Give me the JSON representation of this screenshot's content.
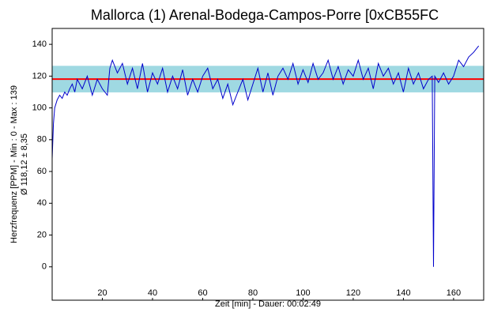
{
  "chart_data": {
    "type": "line",
    "title": "Mallorca (1) Arenal-Bodega-Campos-Porre [0xCB55FC",
    "x_label": "Zeit [min] - Dauer: 00:02:49",
    "y_label": "Herzfrequenz [PPM] - Min : 0 - Max : 139",
    "y_label_2": "Ø 118,12 ± 8,35",
    "mean": 118.12,
    "std": 8.35,
    "mean_color": "#ff0000",
    "band_color": "#9fd9e2",
    "xlim": [
      0,
      172
    ],
    "ylim": [
      -21,
      150
    ],
    "xticks": [
      20,
      40,
      60,
      80,
      100,
      120,
      140,
      160
    ],
    "yticks": [
      0,
      20,
      40,
      60,
      80,
      100,
      120,
      140
    ],
    "series": [
      {
        "name": "Herzfrequenz",
        "color": "#0000cc",
        "x": [
          0,
          0.5,
          1,
          2,
          3,
          4,
          5,
          6,
          7,
          8,
          9,
          10,
          12,
          14,
          16,
          18,
          20,
          22,
          23,
          24,
          26,
          28,
          30,
          32,
          34,
          36,
          38,
          40,
          42,
          44,
          46,
          48,
          50,
          52,
          54,
          56,
          58,
          60,
          62,
          64,
          66,
          68,
          70,
          72,
          74,
          76,
          78,
          80,
          82,
          84,
          86,
          88,
          90,
          92,
          94,
          96,
          98,
          100,
          102,
          104,
          106,
          108,
          110,
          112,
          114,
          116,
          118,
          120,
          122,
          124,
          126,
          128,
          130,
          132,
          134,
          136,
          138,
          140,
          142,
          144,
          146,
          148,
          150,
          151.5,
          152,
          152.5,
          154,
          156,
          158,
          160,
          162,
          164,
          166,
          168,
          170
        ],
        "values": [
          68,
          90,
          100,
          105,
          108,
          106,
          110,
          108,
          112,
          115,
          110,
          118,
          112,
          120,
          108,
          118,
          112,
          108,
          125,
          130,
          122,
          128,
          115,
          125,
          112,
          128,
          110,
          122,
          115,
          125,
          110,
          120,
          112,
          124,
          108,
          118,
          110,
          120,
          125,
          112,
          118,
          106,
          115,
          102,
          110,
          118,
          105,
          115,
          125,
          110,
          122,
          108,
          120,
          125,
          118,
          128,
          115,
          124,
          116,
          128,
          118,
          122,
          130,
          118,
          126,
          115,
          124,
          120,
          130,
          118,
          125,
          112,
          128,
          120,
          125,
          115,
          122,
          110,
          125,
          115,
          122,
          112,
          118,
          120,
          0,
          120,
          116,
          122,
          115,
          120,
          130,
          126,
          132,
          135,
          139
        ]
      }
    ]
  }
}
